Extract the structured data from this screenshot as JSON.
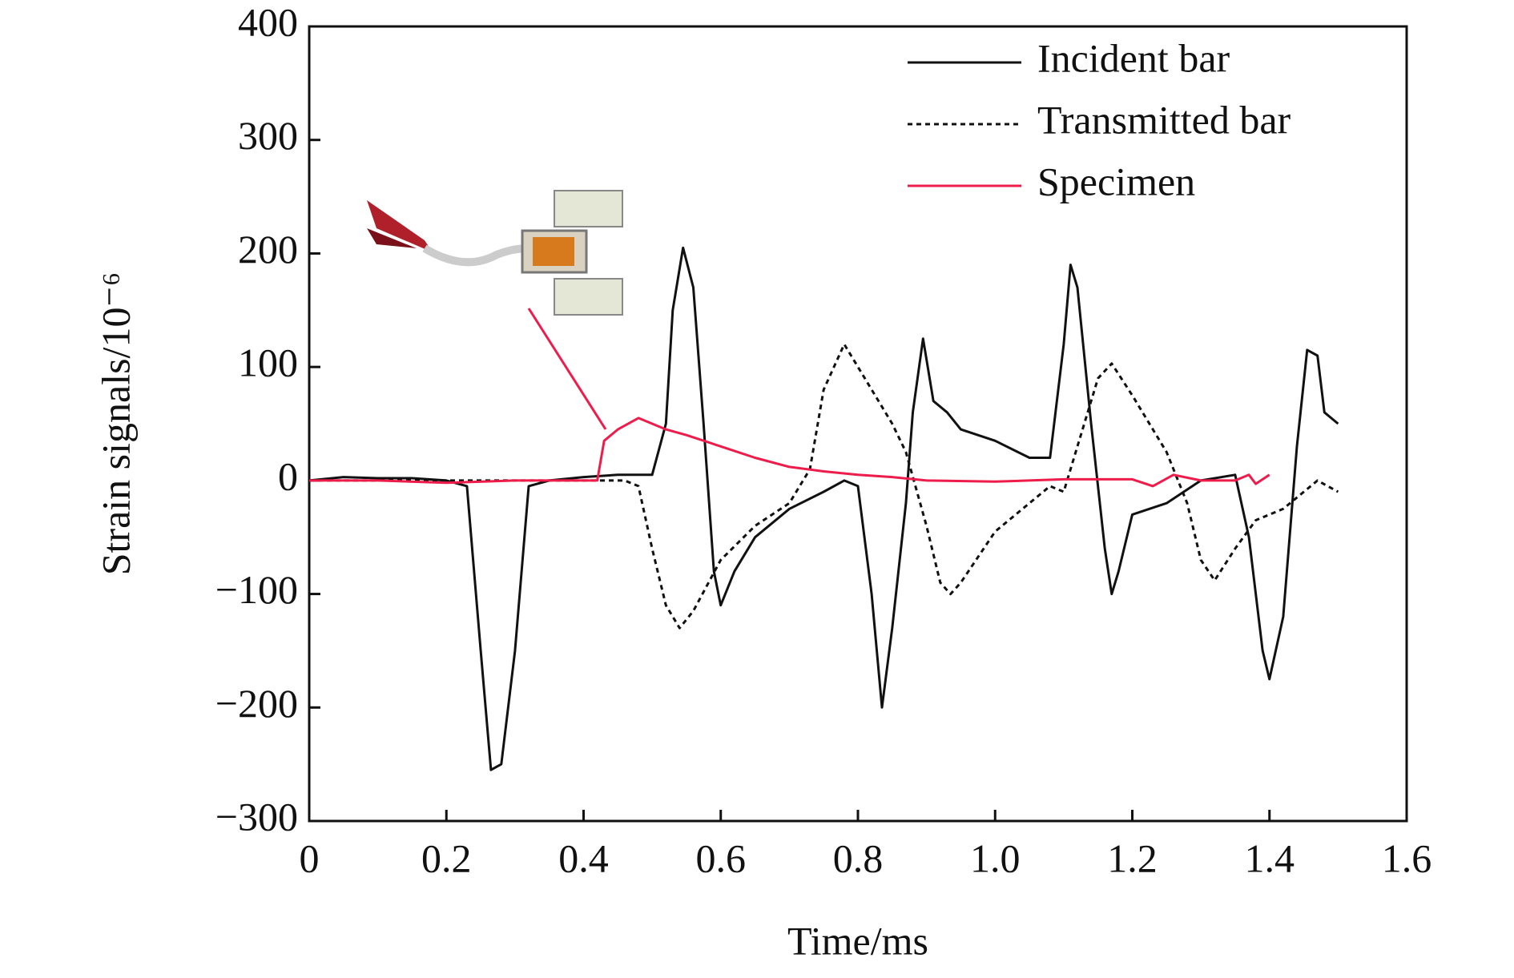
{
  "chart_data": {
    "type": "line",
    "x_label": "Time/ms",
    "y_label": "Strain signals/10⁻⁶",
    "xlim": [
      0,
      1.6
    ],
    "xticks": [
      0,
      0.2,
      0.4,
      0.6,
      0.8,
      {
        "value": 1,
        "label": "1.0"
      },
      1.2,
      1.4,
      1.6
    ],
    "ylim": [
      -300,
      400
    ],
    "yticks": [
      {
        "value": -300,
        "label": "−300"
      },
      {
        "value": -200,
        "label": "−200"
      },
      {
        "value": -100,
        "label": "−100"
      },
      0,
      100,
      200,
      300,
      400
    ],
    "legend": "upper right",
    "series": [
      {
        "name": "Incident bar",
        "color": "#111111",
        "style": "solid",
        "x": [
          0,
          0.05,
          0.1,
          0.15,
          0.2,
          0.23,
          0.25,
          0.265,
          0.28,
          0.3,
          0.32,
          0.35,
          0.4,
          0.45,
          0.5,
          0.52,
          0.53,
          0.545,
          0.56,
          0.575,
          0.59,
          0.6,
          0.62,
          0.65,
          0.7,
          0.75,
          0.78,
          0.8,
          0.82,
          0.835,
          0.85,
          0.87,
          0.88,
          0.895,
          0.91,
          0.93,
          0.95,
          1.0,
          1.05,
          1.08,
          1.1,
          1.11,
          1.12,
          1.14,
          1.16,
          1.17,
          1.18,
          1.2,
          1.25,
          1.3,
          1.35,
          1.37,
          1.39,
          1.4,
          1.42,
          1.44,
          1.455,
          1.47,
          1.48,
          1.5
        ],
        "values": [
          0,
          3,
          2,
          2,
          0,
          -5,
          -150,
          -255,
          -250,
          -150,
          -5,
          0,
          3,
          5,
          5,
          50,
          150,
          205,
          170,
          50,
          -80,
          -110,
          -80,
          -50,
          -25,
          -10,
          0,
          -5,
          -100,
          -200,
          -130,
          -20,
          60,
          125,
          70,
          60,
          45,
          35,
          20,
          20,
          120,
          190,
          170,
          50,
          -60,
          -100,
          -80,
          -30,
          -20,
          0,
          5,
          -50,
          -150,
          -175,
          -120,
          30,
          115,
          110,
          60,
          50
        ]
      },
      {
        "name": "Transmitted bar",
        "color": "#111111",
        "style": "dashed",
        "x": [
          0,
          0.2,
          0.4,
          0.46,
          0.48,
          0.5,
          0.52,
          0.54,
          0.56,
          0.6,
          0.65,
          0.7,
          0.73,
          0.75,
          0.78,
          0.8,
          0.85,
          0.87,
          0.9,
          0.92,
          0.935,
          0.95,
          1.0,
          1.05,
          1.08,
          1.1,
          1.12,
          1.15,
          1.17,
          1.2,
          1.25,
          1.28,
          1.3,
          1.32,
          1.35,
          1.38,
          1.42,
          1.47,
          1.5
        ],
        "values": [
          0,
          0,
          0,
          0,
          -5,
          -60,
          -110,
          -130,
          -115,
          -70,
          -40,
          -20,
          10,
          80,
          120,
          100,
          50,
          25,
          -40,
          -90,
          -100,
          -90,
          -45,
          -20,
          -5,
          -10,
          30,
          90,
          103,
          75,
          25,
          -20,
          -70,
          -88,
          -60,
          -35,
          -25,
          0,
          -10
        ]
      },
      {
        "name": "Specimen",
        "color": "#ee1c4a",
        "style": "solid",
        "x": [
          0,
          0.1,
          0.2,
          0.3,
          0.42,
          0.43,
          0.45,
          0.48,
          0.52,
          0.55,
          0.6,
          0.65,
          0.7,
          0.75,
          0.8,
          0.85,
          0.9,
          1.0,
          1.1,
          1.2,
          1.23,
          1.26,
          1.3,
          1.35,
          1.37,
          1.38,
          1.4
        ],
        "values": [
          0,
          0,
          -2,
          0,
          0,
          35,
          45,
          55,
          45,
          40,
          30,
          20,
          12,
          8,
          5,
          3,
          0,
          -1,
          1,
          1,
          -5,
          5,
          0,
          0,
          5,
          -3,
          5
        ]
      }
    ]
  }
}
